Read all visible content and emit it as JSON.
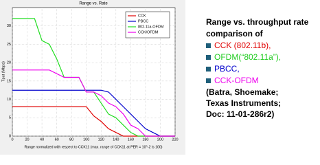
{
  "chart_data": {
    "type": "line",
    "title": "Range vs. Rate",
    "x_label": "Range normalized with respect to CCK11 (max. range of CCK11 at PER = 10^-2 is 100)",
    "y_label": "Tput (Mbps)",
    "x": [
      0,
      10,
      20,
      30,
      40,
      50,
      60,
      70,
      80,
      90,
      100,
      110,
      120,
      130,
      140,
      150,
      160,
      170,
      180,
      190,
      200,
      210,
      220
    ],
    "series": [
      {
        "name": "CCK",
        "color": "#e00000",
        "values": [
          8,
          8,
          8,
          8,
          8,
          8,
          8,
          8,
          8,
          8,
          8,
          5.5,
          4,
          2,
          1,
          0,
          0,
          0,
          0,
          0,
          0,
          0,
          0
        ]
      },
      {
        "name": "PBCC",
        "color": "#0000cc",
        "values": [
          12.5,
          12.5,
          12.5,
          12.5,
          12.5,
          12.5,
          12.5,
          12.5,
          12.5,
          12.5,
          12.5,
          12.5,
          12.5,
          12,
          10,
          8,
          6,
          4,
          2,
          1,
          0,
          0,
          0
        ]
      },
      {
        "name": "802.11a-OFDM",
        "color": "#22dd22",
        "values": [
          32,
          32,
          32,
          32,
          26,
          25,
          21,
          16,
          16,
          16,
          12,
          12,
          9,
          6,
          5,
          3,
          1,
          0,
          0,
          0,
          0,
          0,
          0
        ]
      },
      {
        "name": "CCK/OFDM",
        "color": "#ee00ee",
        "values": [
          18,
          18,
          18,
          18,
          18,
          18,
          17,
          16,
          16,
          16,
          12,
          12,
          11,
          9,
          8,
          6,
          3,
          2,
          0,
          0,
          0,
          0,
          0
        ]
      }
    ],
    "xlim": [
      0,
      220
    ],
    "xticks": [
      0,
      20,
      40,
      60,
      80,
      100,
      120,
      140,
      160,
      180,
      200,
      220
    ],
    "ylim": [
      0,
      35
    ],
    "yticks": [
      0,
      5,
      10,
      15,
      20,
      25,
      30
    ],
    "grid": true,
    "legend": "upper-right"
  },
  "panel": {
    "heading": [
      "Range vs. throughput rate",
      "comparison of"
    ],
    "bullets": [
      {
        "text": "CCK (802.11b),",
        "color": "#e00000"
      },
      {
        "text": "OFDM(“802.11a”),",
        "color": "#22cc22"
      },
      {
        "text": "PBCC,",
        "color": "#0000cc"
      },
      {
        "text": "CCK-OFDM",
        "color": "#ee00ee"
      }
    ],
    "source": [
      "(Batra,  Shoemake;",
      " Texas Instruments;",
      " Doc: 11-01-286r2)"
    ]
  }
}
